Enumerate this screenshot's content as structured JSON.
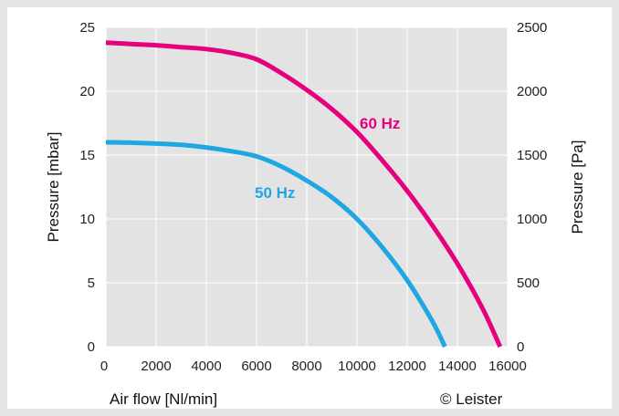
{
  "chart_data": {
    "type": "line",
    "title": "",
    "xlabel": "Air flow [Nl/min]",
    "ylabel": "Pressure [mbar]",
    "y2label": "Pressure [Pa]",
    "xlim": [
      0,
      16000
    ],
    "ylim": [
      0,
      25
    ],
    "y2lim": [
      0,
      2500
    ],
    "xticks": [
      0,
      2000,
      4000,
      6000,
      8000,
      10000,
      12000,
      14000,
      16000
    ],
    "yticks": [
      0,
      5,
      10,
      15,
      20,
      25
    ],
    "y2ticks": [
      0,
      500,
      1000,
      1500,
      2000,
      2500
    ],
    "grid": true,
    "series": [
      {
        "name": "60 Hz",
        "color": "#e6007e",
        "x": [
          0,
          1000,
          2000,
          3000,
          4000,
          5000,
          6000,
          7000,
          8000,
          9000,
          10000,
          11000,
          12000,
          13000,
          14000,
          15000,
          15700
        ],
        "y": [
          23.8,
          23.7,
          23.6,
          23.45,
          23.3,
          23.0,
          22.5,
          21.4,
          20.1,
          18.6,
          16.8,
          14.6,
          12.2,
          9.5,
          6.5,
          3.0,
          0
        ]
      },
      {
        "name": "50 Hz",
        "color": "#1ea7e1",
        "x": [
          0,
          1000,
          2000,
          3000,
          4000,
          5000,
          6000,
          7000,
          8000,
          9000,
          10000,
          11000,
          12000,
          13000,
          13500
        ],
        "y": [
          16.0,
          15.97,
          15.9,
          15.8,
          15.6,
          15.3,
          14.9,
          14.1,
          13.0,
          11.7,
          10.0,
          7.8,
          5.2,
          2.0,
          0
        ]
      }
    ],
    "annotations": {
      "series_60": "60 Hz",
      "series_50": "50 Hz"
    }
  },
  "footer": {
    "axis_title": "Air flow [Nl/min]",
    "copyright": "© Leister"
  }
}
